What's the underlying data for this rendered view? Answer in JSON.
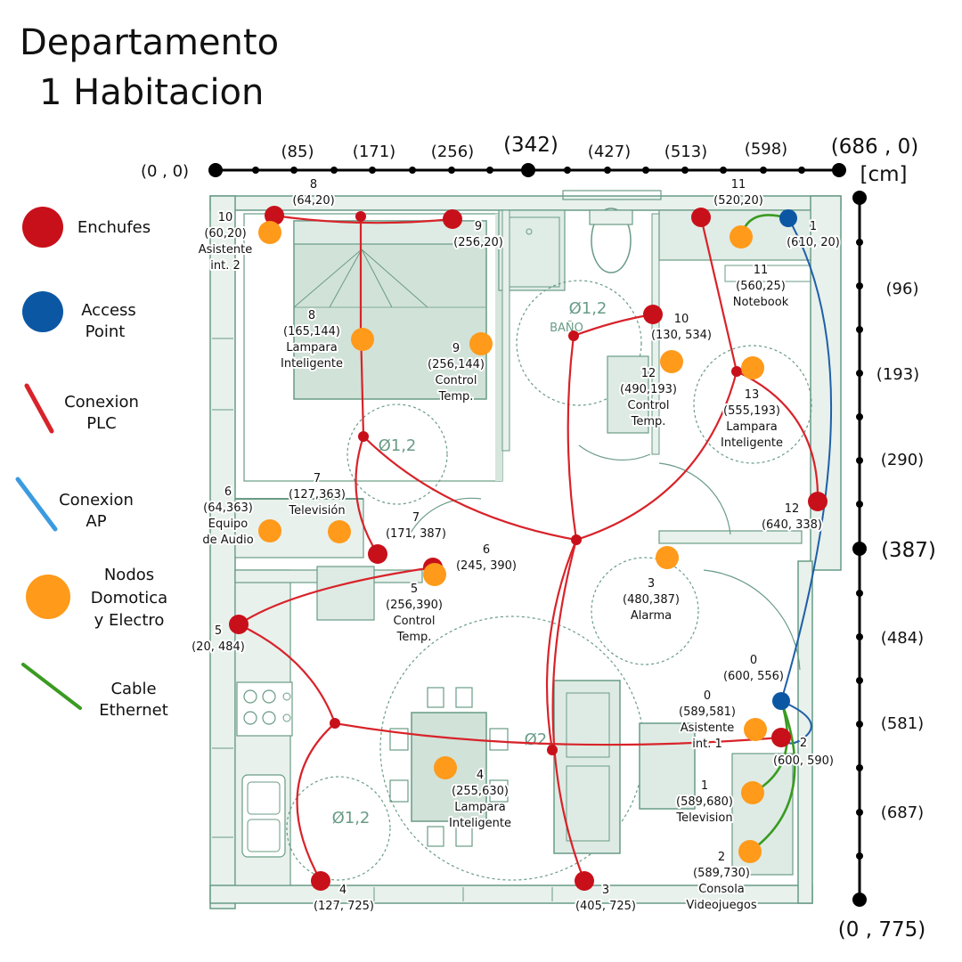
{
  "title": {
    "line1": "Departamento",
    "line2": "1 Habitacion"
  },
  "axes": {
    "origin": "(0 , 0)",
    "top_end": "(686 , 0)",
    "unit": "[cm]",
    "bottom_end": "(0 , 775)",
    "top_ticks": [
      "(85)",
      "(171)",
      "(256)",
      "(342)",
      "(427)",
      "(513)",
      "(598)"
    ],
    "right_ticks": [
      "(96)",
      "(193)",
      "(290)",
      "(387)",
      "(484)",
      "(581)",
      "(687)"
    ]
  },
  "legend": {
    "enchufes": "Enchufes",
    "ap": [
      "Access",
      "Point"
    ],
    "plc": [
      "Conexion",
      "PLC"
    ],
    "conexion_ap": [
      "Conexion",
      "AP"
    ],
    "nodos": [
      "Nodos",
      "Domotica",
      "y Electro"
    ],
    "cable": [
      "Cable",
      "Ethernet"
    ]
  },
  "colors": {
    "enchufe": "#c8101a",
    "access_point": "#0b57a4",
    "plc": "#d8232a",
    "ap_link": "#1f5fa8",
    "nodo": "#ff9a1a",
    "ethernet": "#3a9b22",
    "plan": "#4f8a72"
  },
  "plan_labels": {
    "bano": "BAÑO",
    "circle": "Ø1,2",
    "cocina_circle": "Ø1,2",
    "living": "Ø2,8",
    "habitacion_circle": "Ø1,2"
  },
  "labels": {
    "e8": [
      "8",
      "(64,20)"
    ],
    "e10": [
      "10",
      "(60,20)",
      "Asistente",
      "int. 2"
    ],
    "e9": [
      "9",
      "(256,20)"
    ],
    "e11": [
      "11",
      "(520,20)"
    ],
    "ap1": [
      "1",
      "(610, 20)"
    ],
    "n11": [
      "11",
      "(560,25)",
      "Notebook"
    ],
    "n8": [
      "8",
      "(165,144)",
      "Lampara",
      "Inteligente"
    ],
    "n9": [
      "9",
      "(256,144)",
      "Control",
      "Temp."
    ],
    "e10b": [
      "10",
      "(130, 534)"
    ],
    "n12": [
      "12",
      "(490,193)",
      "Control",
      "Temp."
    ],
    "n13": [
      "13",
      "(555,193)",
      "Lampara",
      "Inteligente"
    ],
    "e12": [
      "12",
      "(640, 338)"
    ],
    "n6": [
      "6",
      "(64,363)",
      "Equipo",
      "de Audio"
    ],
    "n7": [
      "7",
      "(127,363)",
      "Televisión"
    ],
    "e7": [
      "7",
      "(171, 387)"
    ],
    "e6": [
      "6",
      "(245, 390)"
    ],
    "n5": [
      "5",
      "(256,390)",
      "Control",
      "Temp."
    ],
    "n3": [
      "3",
      "(480,387)",
      "Alarma"
    ],
    "e5": [
      "5",
      "(20, 484)"
    ],
    "ap0": [
      "0",
      "(600, 556)"
    ],
    "n0": [
      "0",
      "(589,581)",
      "Asistente",
      "int. 1"
    ],
    "e2": [
      "2",
      "(600, 590)"
    ],
    "n4": [
      "4",
      "(255,630)",
      "Lampara",
      "Inteligente"
    ],
    "n1": [
      "1",
      "(589,680)",
      "Television"
    ],
    "n2": [
      "2",
      "(589,730)",
      "Consola",
      "Videojuegos"
    ],
    "e4": [
      "4",
      "(127, 725)"
    ],
    "e3": [
      "3",
      "(405, 725)"
    ]
  }
}
